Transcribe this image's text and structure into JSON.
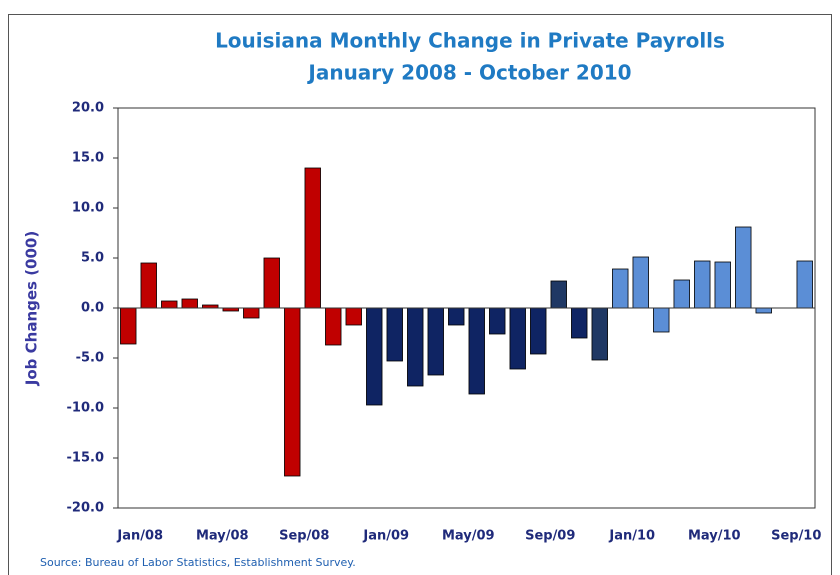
{
  "chart_data": {
    "type": "bar",
    "title": "Louisiana Monthly Change in Private Payrolls",
    "subtitle": "January 2008 - October 2010",
    "y_label": "Job Changes (000)",
    "source": "Source: Bureau of Labor Statistics, Establishment Survey.",
    "categories": [
      "Jan/08",
      null,
      null,
      null,
      "May/08",
      null,
      null,
      null,
      "Sep/08",
      null,
      null,
      null,
      "Jan/09",
      null,
      null,
      null,
      "May/09",
      null,
      null,
      null,
      "Sep/09",
      null,
      null,
      null,
      "Jan/10",
      null,
      null,
      null,
      "May/10",
      null,
      null,
      null,
      "Sep/10",
      null
    ],
    "values": [
      -3.6,
      4.5,
      0.7,
      0.9,
      0.3,
      -0.3,
      -1.0,
      5.0,
      -16.8,
      14.0,
      -3.7,
      -1.7,
      -9.7,
      -5.3,
      -7.8,
      -6.7,
      -1.7,
      -8.6,
      -2.6,
      -6.1,
      -4.6,
      2.7,
      -3.0,
      -5.2,
      3.9,
      5.1,
      -2.4,
      2.8,
      4.7,
      4.6,
      8.1,
      -0.5,
      0.0,
      4.7
    ],
    "colors": [
      "#c00000",
      "#c00000",
      "#c00000",
      "#c00000",
      "#c00000",
      "#c00000",
      "#c00000",
      "#c00000",
      "#c00000",
      "#c00000",
      "#c00000",
      "#c00000",
      "#0f2463",
      "#0f2463",
      "#0f2463",
      "#0f2463",
      "#0f2463",
      "#0f2463",
      "#0f2463",
      "#0f2463",
      "#0f2463",
      "#1f3864",
      "#0f2463",
      "#1f3864",
      "#5b8ed6",
      "#5b8ed6",
      "#5b8ed6",
      "#5b8ed6",
      "#5b8ed6",
      "#5b8ed6",
      "#5b8ed6",
      "#5b8ed6",
      "#5b8ed6",
      "#5b8ed6"
    ],
    "ylim": [
      -20,
      20
    ],
    "yticks": [
      {
        "value": -20,
        "label": "-20.0"
      },
      {
        "value": -15,
        "label": "-15.0"
      },
      {
        "value": -10,
        "label": "-10.0"
      },
      {
        "value": -5,
        "label": "-5.0"
      },
      {
        "value": 0,
        "label": "0.0"
      },
      {
        "value": 5,
        "label": "5.0"
      },
      {
        "value": 10,
        "label": "10.0"
      },
      {
        "value": 15,
        "label": "15.0"
      },
      {
        "value": 20,
        "label": "20.0"
      }
    ],
    "grid": false
  }
}
